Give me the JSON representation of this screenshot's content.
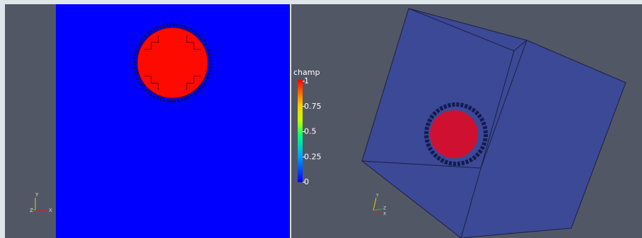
{
  "left_view": {
    "axes": [
      "X",
      "Y",
      "Z"
    ]
  },
  "color_legend": {
    "title": "champ",
    "ticks": [
      1,
      0.75,
      0.5,
      0.25,
      0
    ]
  },
  "right_view": {
    "axes": [
      "X",
      "Y",
      "Z"
    ]
  }
}
